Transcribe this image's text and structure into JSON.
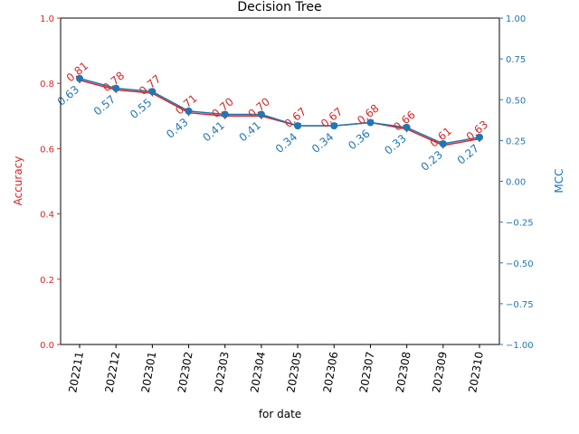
{
  "chart_data": {
    "type": "line",
    "title": "Decision Tree",
    "xlabel": "for date",
    "categories": [
      "202211",
      "202212",
      "202301",
      "202302",
      "202303",
      "202304",
      "202305",
      "202306",
      "202307",
      "202308",
      "202309",
      "202310"
    ],
    "y_left": {
      "label": "Accuracy",
      "ylim": [
        0,
        1
      ],
      "ticks": [
        "0.0",
        "0.2",
        "0.4",
        "0.6",
        "0.8",
        "1.0"
      ],
      "color": "#d62728"
    },
    "y_right": {
      "label": "MCC",
      "ylim": [
        -1,
        1
      ],
      "ticks": [
        "−1.00",
        "−0.75",
        "−0.50",
        "−0.25",
        "0.00",
        "0.25",
        "0.50",
        "0.75",
        "1.00"
      ],
      "color": "#1f77b4"
    },
    "series": [
      {
        "name": "Accuracy",
        "axis": "left",
        "color": "#d62728",
        "values": [
          0.81,
          0.78,
          0.77,
          0.71,
          0.7,
          0.7,
          0.67,
          0.67,
          0.68,
          0.66,
          0.61,
          0.63
        ],
        "labels": [
          "0.81",
          "0.78",
          "0.77",
          "0.71",
          "0.70",
          "0.70",
          "0.67",
          "0.67",
          "0.68",
          "0.66",
          "0.61",
          "0.63"
        ]
      },
      {
        "name": "MCC",
        "axis": "right",
        "color": "#1f77b4",
        "values": [
          0.63,
          0.57,
          0.55,
          0.43,
          0.41,
          0.41,
          0.34,
          0.34,
          0.36,
          0.33,
          0.23,
          0.27
        ],
        "labels": [
          "0.63",
          "0.57",
          "0.55",
          "0.43",
          "0.41",
          "0.41",
          "0.34",
          "0.34",
          "0.36",
          "0.33",
          "0.23",
          "0.27"
        ]
      }
    ]
  }
}
